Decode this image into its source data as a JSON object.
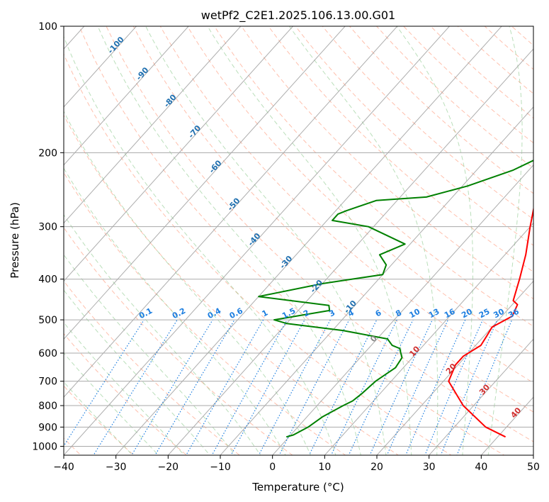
{
  "chart_data": {
    "type": "skew-t",
    "title": "wetPf2_C2E1.2025.106.13.00.G01",
    "xlabel": "Temperature (°C)",
    "ylabel": "Pressure (hPa)",
    "xlim": [
      -40,
      50
    ],
    "ylim": [
      1050,
      100
    ],
    "x_ticks": [
      -40,
      -30,
      -20,
      -10,
      0,
      10,
      20,
      30,
      40,
      50
    ],
    "y_ticks": [
      100,
      200,
      300,
      400,
      500,
      600,
      700,
      800,
      900,
      1000
    ],
    "grid": true,
    "y_scale": "log",
    "colors": {
      "temperature": "#ff0000",
      "dewpoint": "#008000",
      "isotherm": "#999999",
      "dry_adiabat": "#ff8c69",
      "moist_adiabat": "#77c077",
      "mixing_ratio": "#1e7fe0",
      "isotherm_label": "#2070b0",
      "warm_label": "#d03030",
      "zero_label": "#888888"
    },
    "series": [
      {
        "key": "temperature",
        "points": [
          [
            41.5,
            950
          ],
          [
            36,
            900
          ],
          [
            28,
            800
          ],
          [
            21,
            700
          ],
          [
            19.5,
            640
          ],
          [
            19.5,
            610
          ],
          [
            21,
            575
          ],
          [
            20.5,
            545
          ],
          [
            20,
            520
          ],
          [
            22,
            490
          ],
          [
            21,
            460
          ],
          [
            19.5,
            450
          ],
          [
            17,
            400
          ],
          [
            14,
            350
          ],
          [
            10,
            300
          ],
          [
            5.5,
            250
          ],
          [
            3,
            220
          ],
          [
            1.5,
            190
          ],
          [
            0,
            170
          ],
          [
            -2,
            150
          ],
          [
            -3,
            130
          ],
          [
            -4,
            115
          ],
          [
            -2,
            100
          ]
        ]
      },
      {
        "key": "dewpoint",
        "points": [
          [
            -0.5,
            950
          ],
          [
            0.5,
            940
          ],
          [
            2,
            900
          ],
          [
            3,
            850
          ],
          [
            5,
            800
          ],
          [
            6,
            780
          ],
          [
            6.5,
            750
          ],
          [
            7,
            700
          ],
          [
            8.5,
            650
          ],
          [
            8,
            615
          ],
          [
            7,
            600
          ],
          [
            6,
            585
          ],
          [
            4,
            575
          ],
          [
            2,
            555
          ],
          [
            -8,
            530
          ],
          [
            -20,
            510
          ],
          [
            -23,
            500
          ],
          [
            -14,
            475
          ],
          [
            -15,
            462
          ],
          [
            -30,
            440
          ],
          [
            -20,
            410
          ],
          [
            -10,
            390
          ],
          [
            -11,
            370
          ],
          [
            -14,
            350
          ],
          [
            -11,
            330
          ],
          [
            -21,
            300
          ],
          [
            -29,
            290
          ],
          [
            -29,
            280
          ],
          [
            -28,
            275
          ],
          [
            -24,
            260
          ],
          [
            -15,
            255
          ],
          [
            -9,
            240
          ],
          [
            -3,
            220
          ],
          [
            1,
            200
          ],
          [
            3,
            185
          ],
          [
            1,
            160
          ],
          [
            -2.5,
            140
          ],
          [
            -4,
            125
          ],
          [
            -5,
            110
          ],
          [
            -4.5,
            100
          ]
        ]
      }
    ],
    "isotherm_labels": [
      "-100",
      "-90",
      "-80",
      "-70",
      "-60",
      "-50",
      "-40",
      "-30",
      "-20",
      "-10"
    ],
    "mixing_ratio_labels": [
      "0.1",
      "0.2",
      "0.4",
      "0.6",
      "1",
      "1.5",
      "2",
      "3",
      "4",
      "6",
      "8",
      "10",
      "13",
      "16",
      "20",
      "25",
      "30",
      "36"
    ],
    "warm_labels": [
      "0",
      "10",
      "20",
      "30",
      "40"
    ]
  }
}
